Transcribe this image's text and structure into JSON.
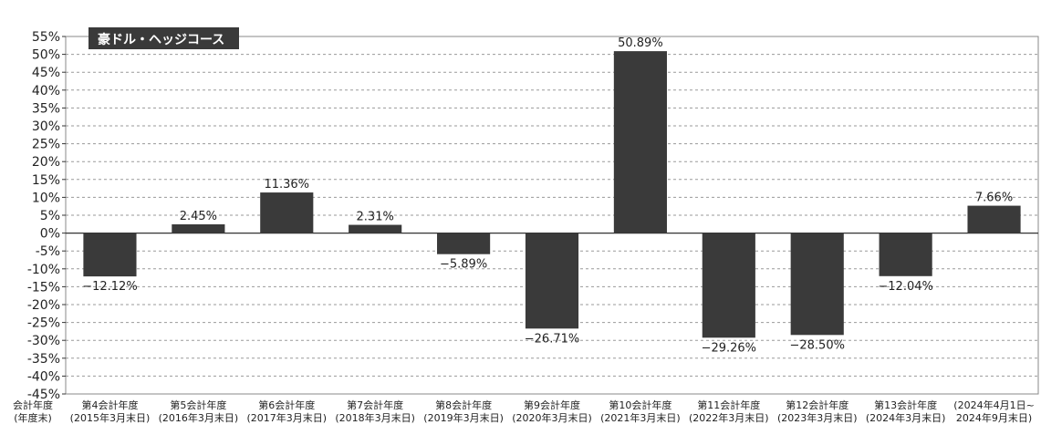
{
  "chart_data": {
    "type": "bar",
    "title": "豪ドル・ヘッジコース",
    "corner_label": [
      "会計年度",
      "(年度末)"
    ],
    "categories": [
      [
        "第4会計年度",
        "(2015年3月末日)"
      ],
      [
        "第5会計年度",
        "(2016年3月末日)"
      ],
      [
        "第6会計年度",
        "(2017年3月末日)"
      ],
      [
        "第7会計年度",
        "(2018年3月末日)"
      ],
      [
        "第8会計年度",
        "(2019年3月末日)"
      ],
      [
        "第9会計年度",
        "(2020年3月末日)"
      ],
      [
        "第10会計年度",
        "(2021年3月末日)"
      ],
      [
        "第11会計年度",
        "(2022年3月末日)"
      ],
      [
        "第12会計年度",
        "(2023年3月末日)"
      ],
      [
        "第13会計年度",
        "(2024年3月末日)"
      ],
      [
        "(2024年4月1日~",
        "2024年9月末日)"
      ]
    ],
    "values": [
      -12.12,
      2.45,
      11.36,
      2.31,
      -5.89,
      -26.71,
      50.89,
      -29.26,
      -28.5,
      -12.04,
      7.66
    ],
    "value_labels": [
      "−12.12%",
      "2.45%",
      "11.36%",
      "2.31%",
      "−5.89%",
      "−26.71%",
      "50.89%",
      "−29.26%",
      "−28.50%",
      "−12.04%",
      "7.66%"
    ],
    "ylim": [
      -45,
      55
    ],
    "ytick_step": 5,
    "ytick_labels": [
      "55%",
      "50%",
      "45%",
      "40%",
      "35%",
      "30%",
      "25%",
      "20%",
      "15%",
      "10%",
      "5%",
      "0%",
      "-5%",
      "-10%",
      "-15%",
      "-20%",
      "-25%",
      "-30%",
      "-35%",
      "-40%",
      "-45%"
    ],
    "grid": true,
    "colors": {
      "bar": "#3a3a3a",
      "grid": "#9a9a9a",
      "axis": "#333333",
      "title_bg": "#3a3a3a",
      "title_fg": "#ffffff"
    }
  }
}
